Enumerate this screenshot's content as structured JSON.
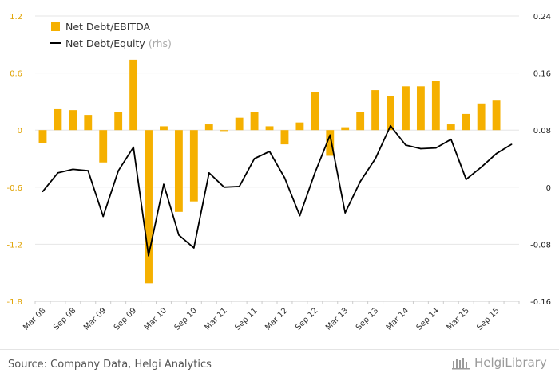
{
  "chart_data": {
    "type": "bar+line",
    "categories": [
      "Mar 08",
      "Jun 08",
      "Sep 08",
      "Dec 08",
      "Mar 09",
      "Jun 09",
      "Sep 09",
      "Dec 09",
      "Mar 10",
      "Jun 10",
      "Sep 10",
      "Dec 10",
      "Mar 11",
      "Jun 11",
      "Sep 11",
      "Dec 11",
      "Mar 12",
      "Jun 12",
      "Sep 12",
      "Dec 12",
      "Mar 13",
      "Jun 13",
      "Sep 13",
      "Dec 13",
      "Mar 14",
      "Jun 14",
      "Sep 14",
      "Dec 14",
      "Mar 15",
      "Jun 15",
      "Sep 15",
      "Dec 15"
    ],
    "x_tick_labels": [
      "Mar 08",
      "Sep 08",
      "Mar 09",
      "Sep 09",
      "Mar 10",
      "Sep 10",
      "Mar 11",
      "Sep 11",
      "Mar 12",
      "Sep 12",
      "Mar 13",
      "Sep 13",
      "Mar 14",
      "Sep 14",
      "Mar 15",
      "Sep 15"
    ],
    "series": [
      {
        "name": "Net Debt/EBITDA",
        "type": "bar",
        "axis": "left",
        "color": "#f5b000",
        "values": [
          -0.14,
          0.22,
          0.21,
          0.16,
          -0.34,
          0.19,
          0.74,
          -1.61,
          0.04,
          -0.86,
          -0.75,
          0.06,
          -0.01,
          0.13,
          0.19,
          0.04,
          -0.15,
          0.08,
          0.4,
          -0.27,
          0.03,
          0.19,
          0.42,
          0.36,
          0.46,
          0.46,
          0.52,
          0.06,
          0.17,
          0.28,
          0.31,
          null
        ]
      },
      {
        "name": "Net Debt/Equity",
        "legend_suffix": "(rhs)",
        "type": "line",
        "axis": "right",
        "color": "#000000",
        "values": [
          -0.006,
          0.02,
          0.025,
          0.023,
          -0.041,
          0.023,
          0.056,
          -0.096,
          0.004,
          -0.067,
          -0.085,
          0.02,
          0.0,
          0.001,
          0.04,
          0.05,
          0.013,
          -0.04,
          0.02,
          0.073,
          -0.036,
          0.008,
          0.04,
          0.086,
          0.059,
          0.054,
          0.055,
          0.067,
          0.011,
          0.028,
          0.047,
          0.06
        ]
      }
    ],
    "y_left": {
      "min": -1.8,
      "max": 1.2,
      "ticks": [
        "1.2",
        "0.6",
        "0",
        "-0.6",
        "-1.2",
        "-1.8"
      ],
      "tick_values": [
        1.2,
        0.6,
        0,
        -0.6,
        -1.2,
        -1.8
      ]
    },
    "y_right": {
      "min": -0.16,
      "max": 0.24,
      "ticks": [
        "0.24",
        "0.16",
        "0.08",
        "0",
        "-0.08",
        "-0.16"
      ],
      "tick_values": [
        0.24,
        0.16,
        0.08,
        0,
        -0.08,
        -0.16
      ]
    },
    "axis_label_color": "#e0a200",
    "grid": "horizontal",
    "legend_position": "top-left"
  },
  "footer": {
    "source": "Source: Company Data, Helgi Analytics",
    "brand": "HelgiLibrary"
  },
  "colors": {
    "bar": "#f5b000",
    "line": "#000000",
    "grid": "#e6e6e6",
    "text_dark": "#333333"
  }
}
